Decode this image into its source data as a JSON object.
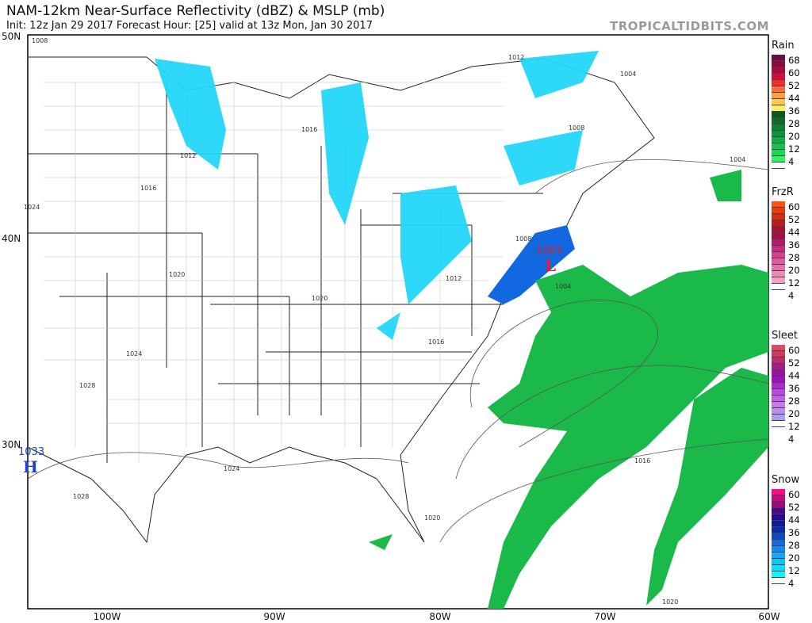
{
  "header": {
    "title": "NAM-12km Near-Surface Reflectivity (dBZ) & MSLP (mb)",
    "subtitle": "Init: 12z Jan 29 2017   Forecast Hour: [25]   valid at 13z Mon, Jan 30 2017",
    "brand": "TROPICALTIDBITS.COM"
  },
  "axes": {
    "lat_labels": [
      "50N",
      "40N",
      "30N"
    ],
    "lon_labels": [
      "100W",
      "90W",
      "80W",
      "70W",
      "60W"
    ]
  },
  "map": {
    "pressure_centers": [
      {
        "type": "L",
        "value": "1003",
        "color": "#e0202a"
      },
      {
        "type": "H",
        "value": "1033",
        "color": "#1f3fd0"
      }
    ],
    "isobar_labels": [
      "1008",
      "1012",
      "1004",
      "1008",
      "1016",
      "1004",
      "1012",
      "1024",
      "1020",
      "1016",
      "1004",
      "1008",
      "1012",
      "1016",
      "1020",
      "1024",
      "1024",
      "1028",
      "1028",
      "1020",
      "1016",
      "1020"
    ]
  },
  "legends": [
    {
      "name": "Rain",
      "ticks": [
        "68",
        "60",
        "52",
        "44",
        "36",
        "28",
        "20",
        "12",
        "4"
      ],
      "colors": [
        "#6e0a48",
        "#8a0b3f",
        "#b0063a",
        "#d80a3a",
        "#fa2a2a",
        "#fb6a3a",
        "#fba040",
        "#fbc850",
        "#f9f060",
        "#0a5a20",
        "#0a6e28",
        "#0a8230",
        "#09963a",
        "#10ab42",
        "#16c24c",
        "#1ada55",
        "#2cf560",
        "#ffffff"
      ]
    },
    {
      "name": "FrzR",
      "ticks": [
        "60",
        "52",
        "44",
        "36",
        "28",
        "20",
        "12",
        "4"
      ],
      "colors": [
        "#ff5010",
        "#f03a08",
        "#d82a10",
        "#c01a1a",
        "#aa0e30",
        "#a0104a",
        "#b8186a",
        "#c82a80",
        "#d4408e",
        "#e05a9c",
        "#e870a8",
        "#f088b6",
        "#f5a0c4",
        "#ffffff"
      ]
    },
    {
      "name": "Sleet",
      "ticks": [
        "60",
        "52",
        "44",
        "36",
        "28",
        "20",
        "12",
        "4"
      ],
      "colors": [
        "#e04860",
        "#d03858",
        "#c02a68",
        "#a81a88",
        "#9a10a8",
        "#a010c0",
        "#b028d0",
        "#bb48dd",
        "#c060e5",
        "#c878ea",
        "#b890f0",
        "#a8a0f0",
        "#ffffff"
      ]
    },
    {
      "name": "Snow",
      "ticks": [
        "60",
        "52",
        "44",
        "36",
        "28",
        "20",
        "12",
        "4"
      ],
      "colors": [
        "#ff0888",
        "#d00880",
        "#a00880",
        "#4a0888",
        "#2a0890",
        "#0a1a98",
        "#0a2ab0",
        "#0a48c8",
        "#1468e0",
        "#1488f0",
        "#10a8f8",
        "#10c4f8",
        "#10dcfa",
        "#10f4fc",
        "#ffffff"
      ]
    }
  ]
}
